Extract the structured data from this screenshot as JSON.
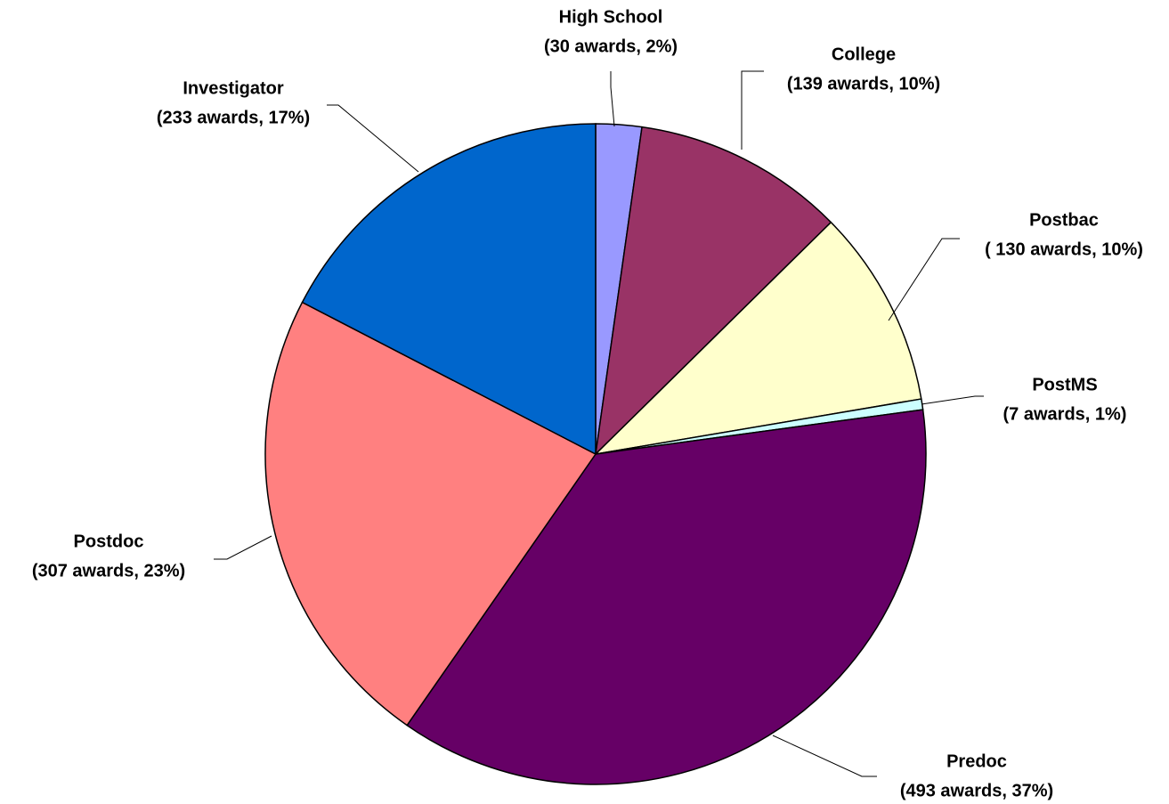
{
  "chart_data": {
    "type": "pie",
    "labels": [
      "High School",
      "College",
      "Postbac",
      "PostMS",
      "Predoc",
      "Postdoc",
      "Investigator"
    ],
    "values": [
      30,
      139,
      130,
      7,
      493,
      307,
      233
    ],
    "value_labels": [
      "(30 awards, 2%)",
      "(139 awards, 10%)",
      "( 130 awards, 10%)",
      "(7 awards, 1%)",
      "(493 awards, 37%)",
      "(307 awards, 23%)",
      "(233 awards, 17%)"
    ],
    "colors": [
      "#9999ff",
      "#993366",
      "#ffffcc",
      "#ccffff",
      "#660066",
      "#ff8080",
      "#0066cc"
    ]
  }
}
